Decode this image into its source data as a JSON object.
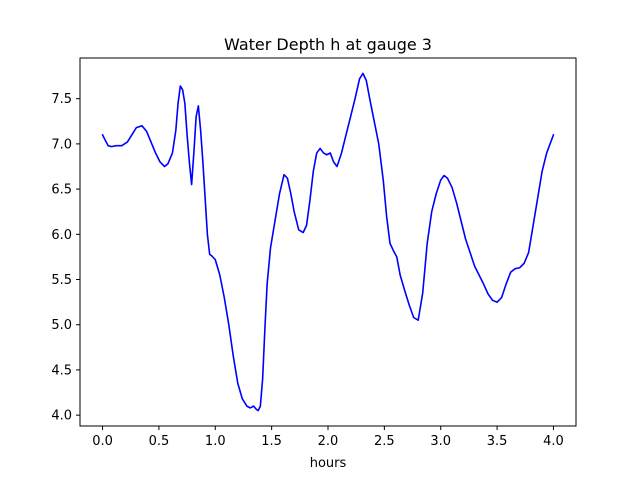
{
  "chart_data": {
    "type": "line",
    "title": "Water Depth h at gauge 3",
    "xlabel": "hours",
    "ylabel": "",
    "xlim": [
      -0.2,
      4.2
    ],
    "ylim": [
      3.88,
      7.95
    ],
    "xticks": [
      0.0,
      0.5,
      1.0,
      1.5,
      2.0,
      2.5,
      3.0,
      3.5,
      4.0
    ],
    "xtick_labels": [
      "0.0",
      "0.5",
      "1.0",
      "1.5",
      "2.0",
      "2.5",
      "3.0",
      "3.5",
      "4.0"
    ],
    "yticks": [
      4.0,
      4.5,
      5.0,
      5.5,
      6.0,
      6.5,
      7.0,
      7.5
    ],
    "ytick_labels": [
      "4.0",
      "4.5",
      "5.0",
      "5.5",
      "6.0",
      "6.5",
      "7.0",
      "7.5"
    ],
    "grid": false,
    "series": [
      {
        "color": "#0000ff",
        "x": [
          0.0,
          0.02,
          0.05,
          0.08,
          0.12,
          0.17,
          0.22,
          0.27,
          0.3,
          0.35,
          0.39,
          0.43,
          0.47,
          0.51,
          0.55,
          0.58,
          0.62,
          0.65,
          0.67,
          0.69,
          0.71,
          0.73,
          0.75,
          0.77,
          0.79,
          0.81,
          0.83,
          0.85,
          0.87,
          0.89,
          0.91,
          0.93,
          0.95,
          0.97,
          1.0,
          1.04,
          1.08,
          1.12,
          1.16,
          1.2,
          1.24,
          1.28,
          1.31,
          1.34,
          1.36,
          1.38,
          1.4,
          1.42,
          1.44,
          1.46,
          1.49,
          1.53,
          1.57,
          1.61,
          1.64,
          1.67,
          1.7,
          1.74,
          1.78,
          1.81,
          1.84,
          1.87,
          1.9,
          1.93,
          1.96,
          1.99,
          2.02,
          2.05,
          2.08,
          2.12,
          2.16,
          2.2,
          2.24,
          2.28,
          2.31,
          2.34,
          2.37,
          2.41,
          2.45,
          2.49,
          2.52,
          2.55,
          2.58,
          2.61,
          2.64,
          2.68,
          2.72,
          2.76,
          2.8,
          2.84,
          2.88,
          2.92,
          2.96,
          3.0,
          3.03,
          3.06,
          3.1,
          3.14,
          3.18,
          3.22,
          3.26,
          3.3,
          3.34,
          3.38,
          3.42,
          3.46,
          3.5,
          3.54,
          3.58,
          3.62,
          3.66,
          3.7,
          3.74,
          3.78,
          3.82,
          3.86,
          3.9,
          3.94,
          3.97,
          4.0
        ],
        "y": [
          7.1,
          7.05,
          6.98,
          6.97,
          6.98,
          6.98,
          7.02,
          7.12,
          7.18,
          7.2,
          7.14,
          7.02,
          6.9,
          6.8,
          6.75,
          6.78,
          6.9,
          7.15,
          7.45,
          7.64,
          7.6,
          7.45,
          7.1,
          6.8,
          6.55,
          6.9,
          7.3,
          7.42,
          7.15,
          6.8,
          6.4,
          6.0,
          5.78,
          5.76,
          5.72,
          5.55,
          5.3,
          5.0,
          4.65,
          4.35,
          4.18,
          4.1,
          4.08,
          4.1,
          4.07,
          4.05,
          4.1,
          4.4,
          4.95,
          5.45,
          5.85,
          6.15,
          6.45,
          6.66,
          6.62,
          6.45,
          6.25,
          6.05,
          6.02,
          6.1,
          6.38,
          6.7,
          6.9,
          6.95,
          6.9,
          6.88,
          6.9,
          6.8,
          6.75,
          6.9,
          7.1,
          7.3,
          7.5,
          7.72,
          7.78,
          7.7,
          7.5,
          7.25,
          7.0,
          6.6,
          6.2,
          5.9,
          5.82,
          5.75,
          5.55,
          5.38,
          5.22,
          5.08,
          5.05,
          5.35,
          5.9,
          6.25,
          6.45,
          6.6,
          6.65,
          6.62,
          6.52,
          6.35,
          6.15,
          5.95,
          5.8,
          5.65,
          5.55,
          5.45,
          5.34,
          5.27,
          5.25,
          5.3,
          5.45,
          5.58,
          5.62,
          5.63,
          5.68,
          5.8,
          6.1,
          6.4,
          6.7,
          6.9,
          7.0,
          7.1
        ]
      }
    ]
  }
}
